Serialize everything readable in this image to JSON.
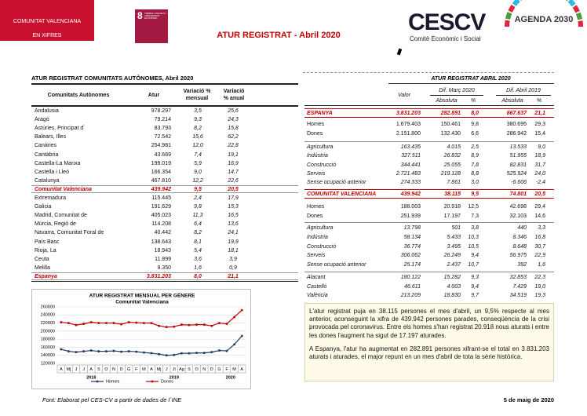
{
  "header": {
    "badge": [
      "COMUNITAT VALENCIANA",
      "EN XIFRES"
    ],
    "sdg": {
      "number": "8",
      "label": "TREBALL DECENT I CREIXEMENT ECONÒMIC"
    },
    "title": "ATUR REGISTRAT - Abril 2020",
    "logo": {
      "name": "CESCV",
      "subtitle": "Comitè Econòmic i Social"
    },
    "agenda": "AGENDA 2030"
  },
  "ccaa_table": {
    "title": "ATUR REGISTRAT COMUNITATS AUTÒNOMES, Abril 2020",
    "headers": [
      "Comunitats Autònomes",
      "Atur",
      "Variació % mensual",
      "Variació % anual"
    ],
    "rows": [
      [
        "Andalusia",
        "978.297",
        "3,5",
        "25,6"
      ],
      [
        "Aragó",
        "79.214",
        "9,3",
        "24,3"
      ],
      [
        "Astúries, Principat d´",
        "83.793",
        "8,2",
        "15,8"
      ],
      [
        "Balears, Illes",
        "72.542",
        "15,6",
        "62,2"
      ],
      [
        "Canàries",
        "254.981",
        "12,0",
        "22,8"
      ],
      [
        "Cantàbria",
        "43.669",
        "7,4",
        "19,1"
      ],
      [
        "Castella-La Manxa",
        "199.019",
        "5,9",
        "16,9"
      ],
      [
        "Castella i Lleó",
        "166.354",
        "9,0",
        "14,7"
      ],
      [
        "Catalunya",
        "467.810",
        "12,2",
        "22,6"
      ],
      [
        "Comunitat Valenciana",
        "439.942",
        "9,5",
        "20,5"
      ],
      [
        "Extremadura",
        "115.445",
        "2,4",
        "17,9"
      ],
      [
        "Galicia",
        "191.629",
        "9,8",
        "15,3"
      ],
      [
        "Madrid, Comunitat de",
        "405.023",
        "11,3",
        "16,5"
      ],
      [
        "Múrcia, Regió de",
        "114.208",
        "6,4",
        "13,6"
      ],
      [
        "Navarra, Comunitat Foral de",
        "40.442",
        "8,2",
        "24,1"
      ],
      [
        "País Basc",
        "138.643",
        "8,1",
        "19,9"
      ],
      [
        "Rioja, La",
        "18.943",
        "5,4",
        "18,1"
      ],
      [
        "Ceuta",
        "11.899",
        "3,6",
        "3,9"
      ],
      [
        "Melilla",
        "9.350",
        "1,6",
        "0,9"
      ],
      [
        "Espanya",
        "3.831.203",
        "8,0",
        "21,1"
      ]
    ]
  },
  "detail_table": {
    "title": "ATUR REGISTRAT ABRIL 2020",
    "headers": {
      "value": "Valor",
      "diff_month": "Dif. Març 2020",
      "diff_year": "Dif. Abril 2019",
      "absolute": "Absoluta",
      "percent": "%"
    },
    "rows": [
      [
        "ESPANYA",
        "3.831.203",
        "282.891",
        "8,0",
        "667.637",
        "21,1"
      ],
      [
        "Homes",
        "1.679.403",
        "150.461",
        "9,8",
        "380.695",
        "29,3"
      ],
      [
        "Dones",
        "2.151.800",
        "132.430",
        "6,6",
        "286.942",
        "15,4"
      ],
      [
        "Agricultura",
        "163.435",
        "4.015",
        "2,5",
        "13.533",
        "9,0"
      ],
      [
        "Indústria",
        "327.511",
        "26.832",
        "8,9",
        "51.955",
        "18,9"
      ],
      [
        "Construcció",
        "344.441",
        "25.055",
        "7,8",
        "82.831",
        "31,7"
      ],
      [
        "Serveis",
        "2.721.483",
        "219.128",
        "8,8",
        "525.924",
        "24,0"
      ],
      [
        "Sense ocupació anterior",
        "274.333",
        "7.861",
        "3,0",
        "-6.606",
        "-2,4"
      ],
      [
        "COMUNITAT VALENCIANA",
        "439.942",
        "38.115",
        "9,5",
        "74.801",
        "20,5"
      ],
      [
        "Homes",
        "188.003",
        "20.918",
        "12,5",
        "42.698",
        "29,4"
      ],
      [
        "Dones",
        "251.939",
        "17.197",
        "7,3",
        "32.103",
        "14,6"
      ],
      [
        "Agricultura",
        "13.798",
        "501",
        "3,8",
        "440",
        "3,3"
      ],
      [
        "Indústria",
        "58.134",
        "5.433",
        "10,3",
        "8.346",
        "16,8"
      ],
      [
        "Construcció",
        "36.774",
        "3.495",
        "10,5",
        "8.648",
        "30,7"
      ],
      [
        "Serveis",
        "306.062",
        "26.249",
        "9,4",
        "56.975",
        "22,9"
      ],
      [
        "Sense ocupació anterior",
        "25.174",
        "2.437",
        "10,7",
        "392",
        "1,6"
      ],
      [
        "Alacant",
        "180.122",
        "15.282",
        "9,3",
        "32.853",
        "22,3"
      ],
      [
        "Castelló",
        "46.611",
        "4.003",
        "9,4",
        "7.429",
        "19,0"
      ],
      [
        "València",
        "213.209",
        "18.830",
        "9,7",
        "34.519",
        "19,3"
      ]
    ]
  },
  "chart_data": {
    "type": "line",
    "title": "ATUR REGISTRAT MENSUAL PER GÈNERE",
    "subtitle": "Comunitat Valenciana",
    "categories": [
      "A",
      "Mj",
      "J",
      "J",
      "A",
      "S",
      "O",
      "N",
      "D",
      "G",
      "F",
      "M",
      "A",
      "Mj",
      "J",
      "Jl",
      "Ag",
      "S",
      "O",
      "N",
      "D",
      "G",
      "F",
      "M",
      "A"
    ],
    "year_labels": [
      "2018",
      "2019",
      "2020"
    ],
    "series": [
      {
        "name": "Homes",
        "color": "#1f3864",
        "values": [
          155000,
          150000,
          148000,
          150000,
          152000,
          150000,
          150000,
          151000,
          149000,
          150000,
          149000,
          147000,
          145305,
          143000,
          140000,
          141000,
          145000,
          145000,
          146000,
          146000,
          148000,
          152000,
          151000,
          167085,
          188003
        ]
      },
      {
        "name": "Dones",
        "color": "#c00000",
        "values": [
          222000,
          220000,
          215000,
          218000,
          222000,
          220000,
          220000,
          220000,
          217000,
          222000,
          221000,
          220000,
          219836,
          213000,
          210000,
          211000,
          216000,
          215000,
          216000,
          216000,
          213000,
          220000,
          218000,
          234742,
          251939
        ]
      }
    ],
    "ylim": [
      120000,
      260000
    ],
    "yticks": [
      120000,
      140000,
      160000,
      180000,
      200000,
      220000,
      240000,
      260000
    ],
    "grid": true
  },
  "summary": {
    "paragraphs": [
      "L'atur registrat puja en 38.115 persones el mes d'abril, un 9,5% respecte al mes anterior, aconseguint la xifra de 439.942 persones parades, conseqüència de la crisi provocada pel coronavirus. Entre els homes s'han registrat 20.918 nous aturats i entre les dones l'augment ha sigut de 17.197 aturades.",
      "A Espanya, l'atur ha augmentat en 282.891 persones xifrant-se el total en 3.831.203 aturats i aturades, el major repunt en un mes d'abril de tota la sèrie històrica."
    ]
  },
  "footer": {
    "source": "Font: Elaborat pel CES-CV a partir de dades de l´INE",
    "date": "5 de maig de 2020"
  }
}
